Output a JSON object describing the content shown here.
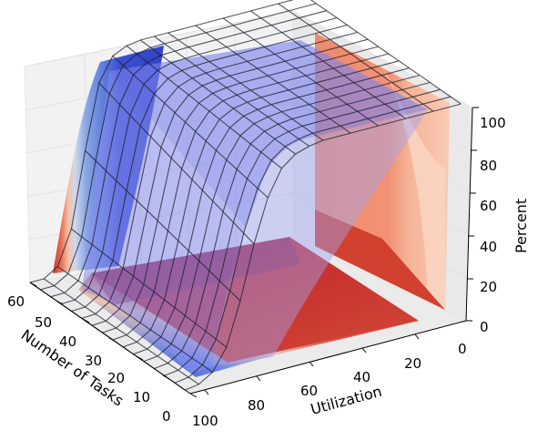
{
  "chart_data": {
    "type": "surface3d",
    "title": "",
    "xlabel": "Utilization",
    "ylabel": "Number of Tasks",
    "zlabel": "Percent",
    "x_ticks": [
      "20",
      "40",
      "60",
      "80",
      "100"
    ],
    "y_ticks": [
      "0",
      "10",
      "20",
      "30",
      "40",
      "50",
      "60"
    ],
    "z_ticks": [
      "0",
      "20",
      "40",
      "60",
      "80",
      "100"
    ],
    "xlim": [
      0,
      100
    ],
    "ylim": [
      0,
      60
    ],
    "zlim": [
      0,
      100
    ],
    "grid": true,
    "surface": {
      "description_values": "Percent as a function of Utilization and Number of Tasks",
      "utilization": [
        0,
        10,
        20,
        30,
        40,
        50,
        55,
        60,
        65,
        70,
        75,
        80,
        85,
        90,
        95,
        100
      ],
      "tasks": [
        2,
        6,
        10,
        14,
        18,
        22,
        26,
        30,
        34,
        38,
        42,
        46,
        50,
        54,
        58,
        62
      ],
      "percent_at_low_tasks": [
        100,
        100,
        100,
        100,
        100,
        100,
        99,
        97,
        92,
        80,
        60,
        35,
        15,
        5,
        1,
        0
      ],
      "percent_at_high_tasks": [
        100,
        100,
        100,
        100,
        100,
        100,
        100,
        100,
        99,
        96,
        85,
        55,
        20,
        4,
        0,
        0
      ]
    },
    "colormap": "coolwarm"
  }
}
